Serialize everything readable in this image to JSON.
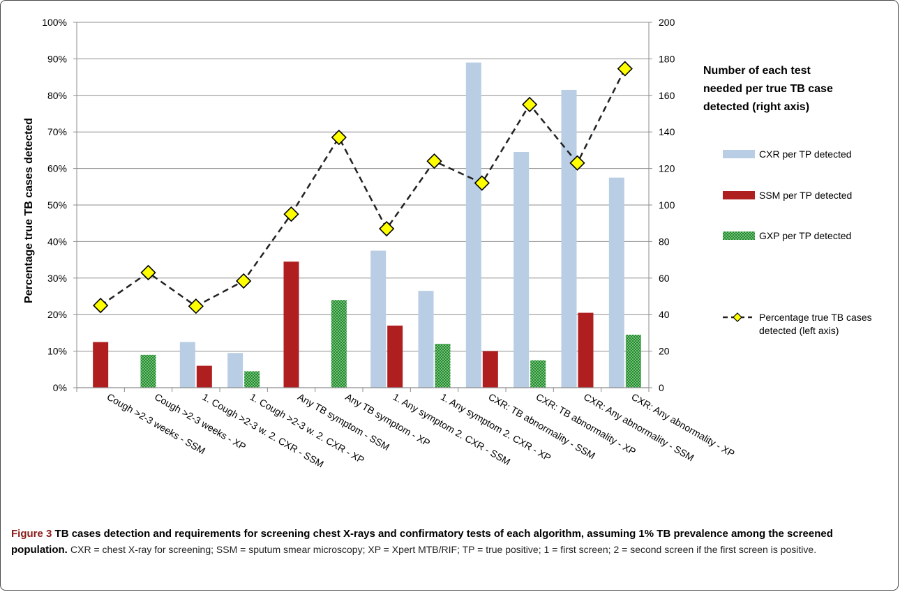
{
  "chart_data": {
    "type": "bar",
    "categories": [
      "Cough >2-3 weeks - SSM",
      "Cough >2-3 weeks - XP",
      "1. Cough >2-3 w. 2. CXR - SSM",
      "1. Cough >2-3 w. 2. CXR - XP",
      "Any TB symptom - SSM",
      "Any TB symptom - XP",
      "1. Any symptom  2. CXR - SSM",
      "1. Any symptom  2. CXR - XP",
      "CXR: TB abnormality - SSM",
      "CXR: TB abnormality - XP",
      "CXR: Any abnormality - SSM",
      "CXR: Any abnormality - XP"
    ],
    "series": [
      {
        "name": "CXR per TP detected",
        "axis": "right",
        "color": "#b9cde5",
        "pattern": "solid",
        "values": [
          0,
          0,
          25,
          19,
          0,
          0,
          75,
          53,
          178,
          129,
          163,
          115
        ]
      },
      {
        "name": "SSM per TP detected",
        "axis": "right",
        "color": "#b01f1f",
        "pattern": "solid",
        "values": [
          25,
          0,
          12,
          0,
          69,
          0,
          34,
          0,
          20,
          0,
          41,
          0
        ]
      },
      {
        "name": "GXP per TP detected",
        "axis": "right",
        "color": "#1e8a2a",
        "pattern": "dotted",
        "values": [
          0,
          18,
          0,
          9,
          0,
          48,
          0,
          24,
          0,
          15,
          0,
          29
        ]
      },
      {
        "name": "Percentage true TB cases detected (left axis)",
        "axis": "left",
        "type": "line",
        "color": "#222222",
        "values": [
          22.5,
          31.5,
          22.3,
          29.2,
          47.5,
          68.5,
          43.5,
          62,
          56,
          77.5,
          61.5,
          87.3
        ]
      }
    ],
    "ylabel": "Percentage  true TB cases detected",
    "ylim": [
      0,
      100
    ],
    "y_ticks": [
      "0%",
      "10%",
      "20%",
      "30%",
      "40%",
      "50%",
      "60%",
      "70%",
      "80%",
      "90%",
      "100%"
    ],
    "y2lim": [
      0,
      200
    ],
    "y2_ticks": [
      "0",
      "20",
      "40",
      "60",
      "80",
      "100",
      "120",
      "140",
      "160",
      "180",
      "200"
    ],
    "legend_title": "Number of each test needed per true TB case detected (right axis)",
    "legend_title_lines": [
      "Number of each test",
      "needed per true TB case",
      "detected (right axis)"
    ],
    "legend_entries": [
      {
        "lines": [
          "CXR per TP detected"
        ]
      },
      {
        "lines": [
          "SSM per TP detected"
        ]
      },
      {
        "lines": [
          "GXP per TP detected"
        ]
      },
      {
        "lines": [
          "Percentage true TB cases",
          "detected (left axis)"
        ]
      }
    ],
    "legend_position": "right",
    "grid": true
  },
  "caption": {
    "label": "Figure 3",
    "title": "TB cases detection and requirements for screening chest X-rays and confirmatory tests of each algorithm, assuming 1% TB prevalence among the screened population.",
    "body": "CXR = chest X-ray for screening; SSM = sputum smear microscopy; XP = Xpert MTB/RIF; TP = true positive; 1 = first screen; 2 = second screen if the first screen is positive."
  }
}
